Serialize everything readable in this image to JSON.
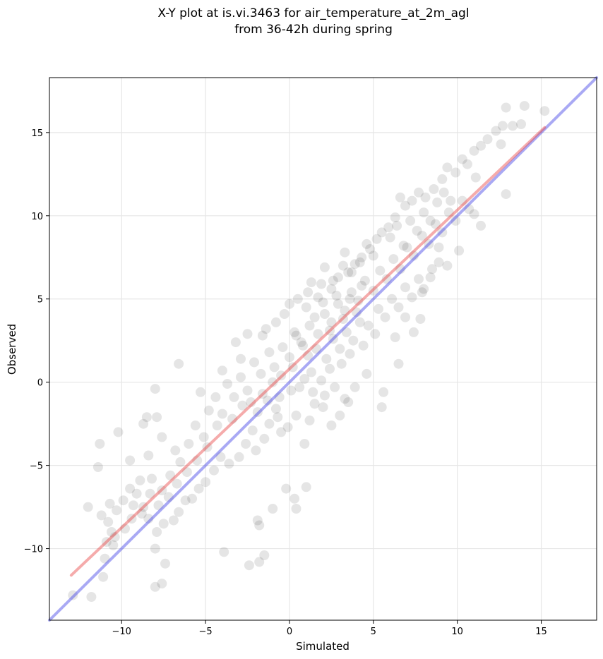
{
  "chart_data": {
    "type": "scatter",
    "title": "X-Y plot at is.vi.3463 for air_temperature_at_2m_agl",
    "subtitle": "from 36-42h during spring",
    "xlabel": "Simulated",
    "ylabel": "Observed",
    "xlim": [
      -14.3,
      18.3
    ],
    "ylim": [
      -14.3,
      18.3
    ],
    "xticks": [
      -10,
      -5,
      0,
      5,
      10,
      15
    ],
    "yticks": [
      -10,
      -5,
      0,
      5,
      10,
      15
    ],
    "xtick_labels": [
      "−10",
      "−5",
      "0",
      "5",
      "10",
      "15"
    ],
    "ytick_labels": [
      "−10",
      "−5",
      "0",
      "5",
      "10",
      "15"
    ],
    "grid": true,
    "point_color": "#000000",
    "point_alpha": 0.1,
    "fit_line": {
      "color": "#e84444",
      "x": [
        -13.0,
        15.2
      ],
      "y": [
        -11.6,
        15.3
      ]
    },
    "identity_line": {
      "color": "#4040e6",
      "x": [
        -14.3,
        18.3
      ],
      "y": [
        -14.3,
        18.3
      ]
    },
    "points": [
      [
        -12.9,
        -12.8
      ],
      [
        -11.8,
        -12.9
      ],
      [
        -12.0,
        -7.5
      ],
      [
        -11.3,
        -3.7
      ],
      [
        -11.4,
        -5.1
      ],
      [
        -10.2,
        -3.0
      ],
      [
        -9.5,
        -4.7
      ],
      [
        -8.7,
        -2.5
      ],
      [
        -8.5,
        -2.1
      ],
      [
        -8.0,
        -0.4
      ],
      [
        -7.9,
        -2.1
      ],
      [
        -7.6,
        -3.3
      ],
      [
        -8.4,
        -4.4
      ],
      [
        -11.1,
        -11.7
      ],
      [
        -11.0,
        -10.6
      ],
      [
        -10.6,
        -9.0
      ],
      [
        -10.5,
        -9.8
      ],
      [
        -8.0,
        -10.0
      ],
      [
        -8.0,
        -12.3
      ],
      [
        -7.6,
        -12.1
      ],
      [
        -7.4,
        -10.9
      ],
      [
        -3.9,
        -10.2
      ],
      [
        -2.4,
        -11.0
      ],
      [
        -1.8,
        -10.8
      ],
      [
        -1.5,
        -10.4
      ],
      [
        -1.9,
        -8.3
      ],
      [
        -1.8,
        -8.6
      ],
      [
        0.3,
        -7.0
      ],
      [
        0.4,
        -7.6
      ],
      [
        -1.0,
        -7.6
      ],
      [
        -0.2,
        -6.4
      ],
      [
        1.0,
        -6.3
      ],
      [
        -6.6,
        1.1
      ],
      [
        -5.3,
        -0.6
      ],
      [
        -4.0,
        0.7
      ],
      [
        -3.2,
        2.4
      ],
      [
        -2.9,
        1.4
      ],
      [
        -2.5,
        2.9
      ],
      [
        -1.6,
        2.8
      ],
      [
        -1.4,
        3.2
      ],
      [
        -0.8,
        3.6
      ],
      [
        -0.3,
        4.1
      ],
      [
        0.0,
        4.7
      ],
      [
        0.5,
        5.0
      ],
      [
        1.1,
        5.4
      ],
      [
        1.9,
        5.9
      ],
      [
        2.6,
        6.1
      ],
      [
        3.2,
        7.0
      ],
      [
        3.5,
        6.6
      ],
      [
        3.9,
        7.1
      ],
      [
        4.3,
        7.5
      ],
      [
        4.8,
        8.0
      ],
      [
        5.2,
        8.6
      ],
      [
        5.5,
        9.0
      ],
      [
        5.9,
        9.3
      ],
      [
        6.3,
        9.9
      ],
      [
        6.6,
        11.1
      ],
      [
        6.9,
        10.6
      ],
      [
        7.3,
        10.9
      ],
      [
        7.7,
        11.4
      ],
      [
        8.1,
        11.1
      ],
      [
        8.6,
        11.6
      ],
      [
        9.1,
        12.2
      ],
      [
        9.4,
        12.9
      ],
      [
        9.9,
        12.6
      ],
      [
        10.3,
        13.4
      ],
      [
        10.6,
        13.1
      ],
      [
        11.0,
        13.9
      ],
      [
        11.4,
        14.2
      ],
      [
        11.8,
        14.6
      ],
      [
        12.3,
        15.1
      ],
      [
        12.7,
        15.4
      ],
      [
        12.9,
        16.5
      ],
      [
        13.3,
        15.4
      ],
      [
        13.8,
        15.5
      ],
      [
        14.0,
        16.6
      ],
      [
        15.2,
        16.3
      ],
      [
        12.6,
        14.3
      ],
      [
        11.1,
        12.3
      ],
      [
        12.9,
        11.3
      ],
      [
        11.4,
        9.4
      ],
      [
        11.0,
        10.1
      ],
      [
        10.1,
        7.9
      ],
      [
        9.4,
        7.0
      ],
      [
        8.9,
        7.2
      ],
      [
        8.4,
        6.3
      ],
      [
        7.9,
        5.4
      ],
      [
        7.8,
        3.8
      ],
      [
        7.4,
        3.0
      ],
      [
        6.9,
        3.9
      ],
      [
        6.3,
        2.7
      ],
      [
        6.5,
        1.1
      ],
      [
        5.6,
        -0.6
      ],
      [
        5.5,
        -1.5
      ],
      [
        4.6,
        0.5
      ],
      [
        3.9,
        -0.3
      ],
      [
        3.5,
        -1.2
      ],
      [
        3.0,
        -2.0
      ],
      [
        2.5,
        -2.6
      ],
      [
        2.1,
        -0.8
      ],
      [
        1.5,
        -1.3
      ],
      [
        1.2,
        -2.3
      ],
      [
        0.9,
        -3.7
      ],
      [
        0.4,
        -2.0
      ],
      [
        -0.1,
        -2.7
      ],
      [
        -0.5,
        -3.0
      ],
      [
        -0.8,
        -1.6
      ],
      [
        -1.2,
        -2.5
      ],
      [
        -1.5,
        -3.4
      ],
      [
        -2.0,
        -4.1
      ],
      [
        -2.6,
        -3.7
      ],
      [
        -3.0,
        -4.5
      ],
      [
        -3.6,
        -4.9
      ],
      [
        -4.1,
        -4.5
      ],
      [
        -4.5,
        -5.3
      ],
      [
        -5.0,
        -6.0
      ],
      [
        -5.4,
        -6.4
      ],
      [
        -5.8,
        -7.0
      ],
      [
        -6.2,
        -7.1
      ],
      [
        -6.6,
        -7.8
      ],
      [
        -6.9,
        -8.3
      ],
      [
        -7.5,
        -8.5
      ],
      [
        -7.9,
        -9.0
      ],
      [
        -8.4,
        -8.2
      ],
      [
        -8.7,
        -7.5
      ],
      [
        -9.1,
        -6.7
      ],
      [
        -9.5,
        -6.4
      ],
      [
        -9.9,
        -7.1
      ],
      [
        -10.3,
        -7.7
      ],
      [
        -10.8,
        -8.4
      ],
      [
        -10.9,
        -9.6
      ],
      [
        -9.4,
        -8.2
      ],
      [
        -8.9,
        -5.9
      ],
      [
        -8.2,
        -5.8
      ],
      [
        -7.6,
        -6.5
      ],
      [
        -7.1,
        -5.6
      ],
      [
        -6.8,
        -4.1
      ],
      [
        -6.5,
        -4.8
      ],
      [
        -6.0,
        -3.7
      ],
      [
        -5.6,
        -2.6
      ],
      [
        -5.1,
        -3.3
      ],
      [
        -4.8,
        -1.7
      ],
      [
        -4.4,
        -0.9
      ],
      [
        -4.0,
        -1.9
      ],
      [
        -3.7,
        -0.1
      ],
      [
        -3.3,
        -0.9
      ],
      [
        -2.9,
        0.3
      ],
      [
        -2.5,
        -0.5
      ],
      [
        -2.1,
        1.2
      ],
      [
        -1.7,
        0.5
      ],
      [
        -1.2,
        1.8
      ],
      [
        -0.9,
        0.9
      ],
      [
        -0.4,
        2.1
      ],
      [
        0.0,
        1.5
      ],
      [
        0.4,
        2.8
      ],
      [
        0.8,
        2.2
      ],
      [
        1.2,
        3.4
      ],
      [
        1.7,
        2.9
      ],
      [
        2.1,
        4.1
      ],
      [
        2.5,
        3.6
      ],
      [
        2.9,
        4.7
      ],
      [
        3.3,
        4.3
      ],
      [
        3.7,
        5.4
      ],
      [
        4.1,
        4.9
      ],
      [
        4.5,
        6.1
      ],
      [
        5.0,
        5.5
      ],
      [
        5.4,
        6.7
      ],
      [
        5.8,
        6.2
      ],
      [
        6.2,
        7.4
      ],
      [
        6.6,
        6.8
      ],
      [
        7.0,
        8.1
      ],
      [
        7.4,
        7.6
      ],
      [
        7.9,
        8.8
      ],
      [
        8.3,
        8.3
      ],
      [
        8.7,
        9.5
      ],
      [
        9.1,
        9.0
      ],
      [
        9.5,
        10.2
      ],
      [
        9.9,
        9.7
      ],
      [
        10.3,
        10.9
      ],
      [
        10.7,
        10.4
      ],
      [
        1.0,
        4.5
      ],
      [
        1.5,
        3.9
      ],
      [
        2.0,
        4.8
      ],
      [
        2.4,
        3.1
      ],
      [
        2.8,
        5.2
      ],
      [
        3.2,
        3.8
      ],
      [
        3.6,
        5.0
      ],
      [
        4.0,
        4.2
      ],
      [
        4.3,
        5.8
      ],
      [
        4.7,
        3.4
      ],
      [
        0.3,
        3.0
      ],
      [
        0.7,
        2.4
      ],
      [
        1.1,
        1.6
      ],
      [
        1.6,
        2.0
      ],
      [
        2.2,
        1.4
      ],
      [
        2.6,
        2.6
      ],
      [
        3.0,
        2.0
      ],
      [
        3.4,
        3.0
      ],
      [
        3.8,
        2.5
      ],
      [
        4.2,
        3.6
      ],
      [
        -0.5,
        0.4
      ],
      [
        0.2,
        0.9
      ],
      [
        0.6,
        -0.3
      ],
      [
        1.3,
        0.6
      ],
      [
        1.9,
        0.1
      ],
      [
        2.4,
        0.8
      ],
      [
        3.1,
        1.1
      ],
      [
        3.6,
        1.7
      ],
      [
        4.4,
        2.2
      ],
      [
        5.1,
        2.9
      ],
      [
        -2.3,
        -1.2
      ],
      [
        -1.6,
        -0.7
      ],
      [
        -1.0,
        0.0
      ],
      [
        -0.6,
        -0.9
      ],
      [
        0.1,
        -0.5
      ],
      [
        0.9,
        0.2
      ],
      [
        1.4,
        -0.6
      ],
      [
        2.0,
        -1.5
      ],
      [
        2.7,
        -0.3
      ],
      [
        3.3,
        -1.0
      ],
      [
        5.3,
        4.4
      ],
      [
        5.7,
        3.9
      ],
      [
        6.1,
        5.0
      ],
      [
        6.5,
        4.5
      ],
      [
        6.9,
        5.7
      ],
      [
        7.3,
        5.1
      ],
      [
        7.7,
        6.2
      ],
      [
        8.0,
        5.6
      ],
      [
        8.5,
        6.8
      ],
      [
        8.9,
        8.1
      ],
      [
        5.0,
        7.6
      ],
      [
        4.6,
        8.3
      ],
      [
        4.2,
        7.2
      ],
      [
        3.7,
        6.6
      ],
      [
        3.3,
        7.8
      ],
      [
        2.9,
        6.3
      ],
      [
        2.5,
        5.6
      ],
      [
        2.1,
        6.9
      ],
      [
        1.7,
        5.1
      ],
      [
        1.3,
        6.0
      ],
      [
        6.0,
        8.7
      ],
      [
        6.4,
        9.4
      ],
      [
        6.8,
        8.2
      ],
      [
        7.2,
        9.7
      ],
      [
        7.6,
        9.1
      ],
      [
        8.0,
        10.2
      ],
      [
        8.4,
        9.7
      ],
      [
        8.8,
        10.8
      ],
      [
        9.2,
        11.4
      ],
      [
        9.6,
        10.9
      ],
      [
        -3.4,
        -2.2
      ],
      [
        -2.8,
        -1.4
      ],
      [
        -2.2,
        -2.9
      ],
      [
        -1.9,
        -1.8
      ],
      [
        -1.3,
        -1.1
      ],
      [
        -0.7,
        -2.1
      ],
      [
        -4.3,
        -2.6
      ],
      [
        -4.9,
        -3.9
      ],
      [
        -5.5,
        -4.7
      ],
      [
        -6.1,
        -5.4
      ],
      [
        -6.7,
        -6.1
      ],
      [
        -7.2,
        -6.9
      ],
      [
        -7.8,
        -7.4
      ],
      [
        -8.3,
        -6.7
      ],
      [
        -8.8,
        -7.9
      ],
      [
        -9.3,
        -7.4
      ],
      [
        -9.8,
        -8.8
      ],
      [
        -10.4,
        -9.3
      ],
      [
        -10.7,
        -7.3
      ],
      [
        -11.2,
        -8.0
      ]
    ]
  }
}
